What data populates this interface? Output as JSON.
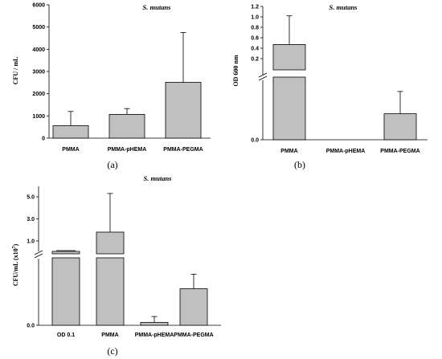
{
  "chart_data": [
    {
      "panel": "(a)",
      "type": "bar",
      "title": "S. mutans",
      "ylabel": "CFU / mL",
      "ylim": [
        0,
        6000
      ],
      "yticks": [
        "0",
        "1000",
        "2000",
        "3000",
        "4000",
        "5000",
        "6000"
      ],
      "categories": [
        "PMMA",
        "PMMA-pHEMA",
        "PMMA-PEGMA"
      ],
      "values": [
        560,
        1070,
        2510
      ],
      "errors": [
        640,
        260,
        2240
      ]
    },
    {
      "panel": "(b)",
      "type": "bar",
      "title": "S. mutans",
      "ylabel": "OD 600 nm",
      "axis_break": true,
      "yticks": [
        "0.0",
        "0.2",
        "0.4",
        "0.6",
        "0.8",
        "1.0",
        "1.2"
      ],
      "categories": [
        "PMMA",
        "PMMA-pHEMA",
        "PMMA-PEGMA"
      ],
      "values": [
        0.47,
        0.0,
        0.035
      ],
      "errors": [
        0.55,
        0.0,
        0.03
      ]
    },
    {
      "panel": "(c)",
      "type": "bar",
      "title": "S. mutans",
      "ylabel": "CFU/mL (x10⁷)",
      "ylabel_main": "CFU/mL (x10",
      "ylabel_sup": "7",
      "ylabel_close": ")",
      "axis_break": true,
      "yticks": [
        "0.0",
        "1.0",
        "3.0",
        "5.0"
      ],
      "categories": [
        "OD 0.1",
        "PMMA",
        "PMMA-pHEMA",
        "PMMA-PEGMA"
      ],
      "values": [
        0.2,
        1.8,
        0.04,
        0.5
      ],
      "errors": [
        0.1,
        3.5,
        0.08,
        0.2
      ]
    }
  ]
}
